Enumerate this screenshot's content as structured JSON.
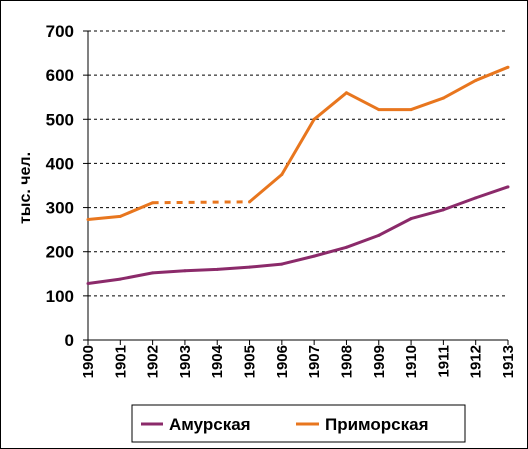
{
  "chart_data": {
    "type": "line",
    "title": "",
    "xlabel": "",
    "ylabel": "тыс. чел.",
    "x": [
      "1900",
      "1901",
      "1902",
      "1903",
      "1904",
      "1905",
      "1906",
      "1907",
      "1908",
      "1909",
      "1910",
      "1911",
      "1912",
      "1913"
    ],
    "ylim": [
      0,
      700
    ],
    "yticks": [
      0,
      100,
      200,
      300,
      400,
      500,
      600,
      700
    ],
    "grid": true,
    "legend_position": "bottom",
    "series": [
      {
        "name": "Амурская",
        "color": "#8B2A6A",
        "values": [
          128,
          138,
          152,
          157,
          160,
          165,
          172,
          190,
          210,
          237,
          275,
          295,
          322,
          347
        ]
      },
      {
        "name": "Приморская",
        "color": "#E8761E",
        "values": [
          273,
          280,
          311,
          null,
          null,
          313,
          375,
          500,
          560,
          522,
          522,
          548,
          588,
          618
        ],
        "dashed_gap": [
          2,
          5
        ]
      }
    ]
  }
}
